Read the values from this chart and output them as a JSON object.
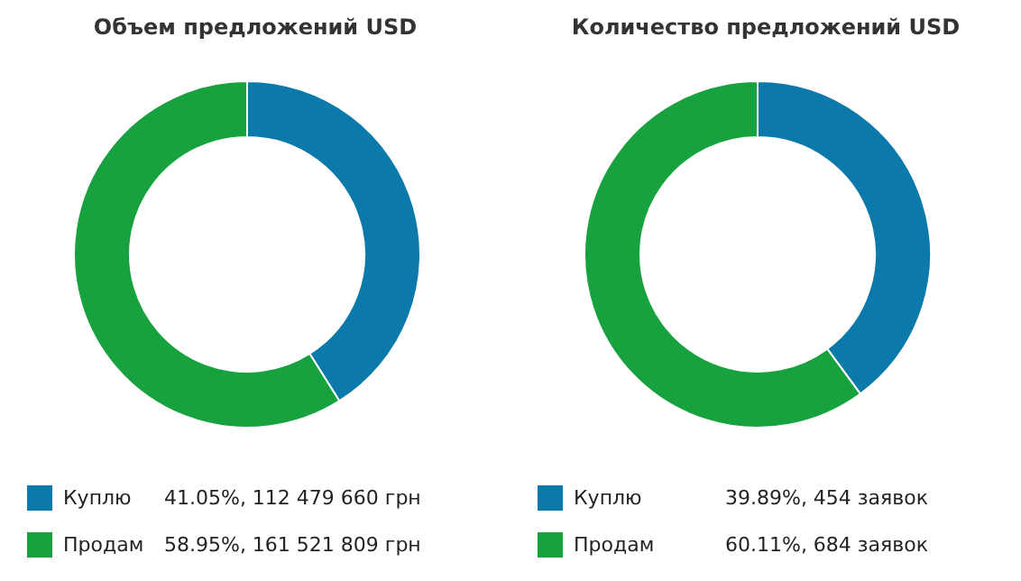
{
  "chart_data": [
    {
      "type": "donut",
      "title": "Объем предложений USD",
      "categories": [
        "Куплю",
        "Продам"
      ],
      "values": [
        41.05,
        58.95
      ],
      "colors": [
        "#0b79a9",
        "#18a23f"
      ],
      "value_labels": [
        "41.05%, 112 479 660 грн",
        "58.95%, 161 521 809 грн"
      ],
      "legend": "bottom left"
    },
    {
      "type": "donut",
      "title": "Количество предложений USD",
      "categories": [
        "Куплю",
        "Продам"
      ],
      "values": [
        39.89,
        60.11
      ],
      "colors": [
        "#0b79a9",
        "#18a23f"
      ],
      "value_labels": [
        "39.89%, 454 заявок",
        "60.11%, 684 заявок"
      ],
      "legend": "bottom left"
    }
  ]
}
